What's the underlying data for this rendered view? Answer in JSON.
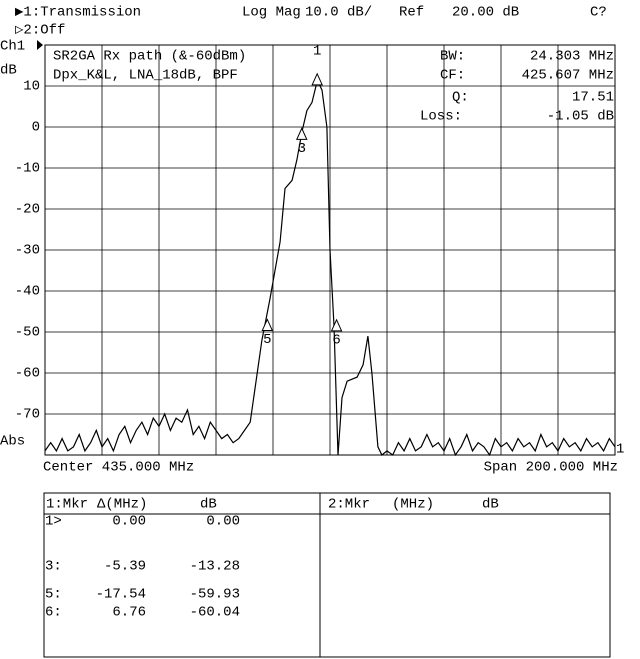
{
  "header": {
    "channel1": "▶1:Transmission",
    "format": "Log Mag",
    "scale": "10.0 dB/",
    "ref_label": "Ref",
    "ref_value": "20.00 dB",
    "status": "C?",
    "channel2": "▷2:Off"
  },
  "chart_data": {
    "type": "line",
    "channel": "Ch1",
    "y_label": "dB",
    "scale_label": "Abs",
    "annotation": [
      "SR2GA Rx path (&-60dBm)",
      "Dpx_K&L, LNA_18dB, BPF"
    ],
    "stats": [
      {
        "label": "BW:",
        "value": "24.303 MHz"
      },
      {
        "label": "CF:",
        "value": "425.607 MHz"
      },
      {
        "label": "Q:",
        "value": "17.51"
      },
      {
        "label": "Loss:",
        "value": "-1.05 dB"
      }
    ],
    "center_label": "Center 435.000 MHz",
    "span_label": "Span 200.000 MHz",
    "xlim": [
      335,
      535
    ],
    "ylim": [
      -80,
      20
    ],
    "yticks": [
      10,
      0,
      -10,
      -20,
      -30,
      -40,
      -50,
      -60,
      -70
    ],
    "grid": true,
    "color": "#000000",
    "x": [
      335,
      337,
      339,
      341,
      343,
      345,
      347,
      349,
      351,
      353,
      355,
      357,
      359,
      361,
      363,
      365,
      367,
      369,
      371,
      373,
      375,
      377,
      379,
      381,
      383,
      385,
      387,
      389,
      391,
      393,
      395,
      397,
      399,
      401,
      403,
      405,
      407,
      411.1,
      413.9,
      417.5,
      419.2,
      421.7,
      423.4,
      425.2,
      426.9,
      428.7,
      430.1,
      430.5,
      432.2,
      433.9,
      435.0,
      436.4,
      437.8,
      439.2,
      441.0,
      444.5,
      446.6,
      448.3,
      449.7,
      451.8,
      453.2,
      455,
      457,
      459,
      461,
      463,
      465,
      467,
      469,
      471,
      473,
      475,
      477,
      479,
      481,
      483,
      485,
      487,
      489,
      491,
      493,
      495,
      497,
      499,
      501,
      503,
      505,
      507,
      509,
      511,
      513,
      515,
      517,
      519,
      521,
      523,
      525,
      527,
      529,
      531,
      533,
      535
    ],
    "values": [
      -79,
      -77,
      -79,
      -76,
      -79,
      -78,
      -75,
      -79,
      -77,
      -74,
      -78,
      -76,
      -79,
      -75,
      -73,
      -77,
      -74,
      -72,
      -75,
      -71,
      -73,
      -70,
      -74,
      -71,
      -72,
      -69,
      -75,
      -73,
      -76,
      -72,
      -74,
      -76,
      -75,
      -77,
      -76,
      -74,
      -72,
      -52,
      -42,
      -28,
      -15,
      -13,
      -8,
      -1,
      4,
      6,
      10,
      11.5,
      9,
      0,
      -30,
      -48.5,
      -80,
      -66,
      -62,
      -61,
      -58,
      -51,
      -60,
      -78,
      -80,
      -79,
      -80,
      -77,
      -79,
      -76,
      -79,
      -78,
      -75,
      -78,
      -77,
      -79,
      -76,
      -80,
      -78,
      -75,
      -79,
      -77,
      -78,
      -80,
      -76,
      -78,
      -77,
      -79,
      -76,
      -78,
      -77,
      -79,
      -75,
      -78,
      -77,
      -79,
      -76,
      -78,
      -77,
      -79,
      -76,
      -78,
      -77,
      -79,
      -76,
      -78
    ],
    "markers": [
      {
        "label": "1",
        "x": 430.5,
        "y": 11.5
      },
      {
        "label": "3",
        "x": 425.1,
        "y": -1.8
      },
      {
        "label": "5",
        "x": 413,
        "y": -48.4
      },
      {
        "label": "6",
        "x": 437.3,
        "y": -48.5
      }
    ],
    "ref_marker_label": "1"
  },
  "marker_table": {
    "left_header": [
      "1:Mkr",
      "Δ(MHz)",
      "dB"
    ],
    "right_header": [
      "2:Mkr",
      "(MHz)",
      "dB"
    ],
    "rows": [
      [
        "1>",
        "0.00",
        "0.00"
      ],
      [
        "3:",
        "-5.39",
        "-13.28"
      ],
      [
        "5:",
        "-17.54",
        "-59.93"
      ],
      [
        "6:",
        "6.76",
        "-60.04"
      ]
    ]
  }
}
